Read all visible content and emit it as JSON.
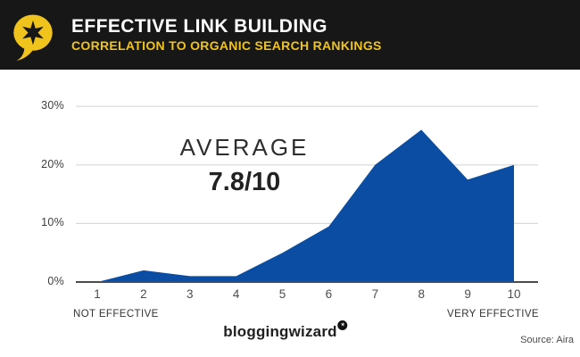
{
  "header": {
    "title": "EFFECTIVE LINK BUILDING",
    "subtitle": "CORRELATION TO ORGANIC SEARCH RANKINGS",
    "background_color": "#171717",
    "title_color": "#FFFFFF",
    "accent_yellow": "#F0C41C",
    "logo_icon": "speech-bubble-star-icon"
  },
  "chart_data": {
    "type": "area",
    "title": "Effective Link Building — Correlation to Organic Search Rankings",
    "x": [
      1,
      2,
      3,
      4,
      5,
      6,
      7,
      8,
      9,
      10
    ],
    "values": [
      0,
      2,
      1,
      1,
      5,
      9.5,
      20,
      26,
      17.5,
      20
    ],
    "yticks": [
      "30%",
      "20%",
      "10%",
      "0%"
    ],
    "ytick_values": [
      30,
      20,
      10,
      0
    ],
    "ylim": [
      0,
      32
    ],
    "grid": true,
    "legend": "none",
    "xlabel_left": "NOT EFFECTIVE",
    "xlabel_right": "VERY EFFECTIVE",
    "annotation": {
      "label": "AVERAGE",
      "value": "7.8/10"
    },
    "fill_color": "#0B4DA2",
    "grid_color": "#D9D9D9",
    "axis_color": "#4C4C4C"
  },
  "footer": {
    "logo_text": "bloggingwizard",
    "badge_icon": "star-badge-icon",
    "badge_glyph": "✶",
    "source": "Source: Aira"
  }
}
